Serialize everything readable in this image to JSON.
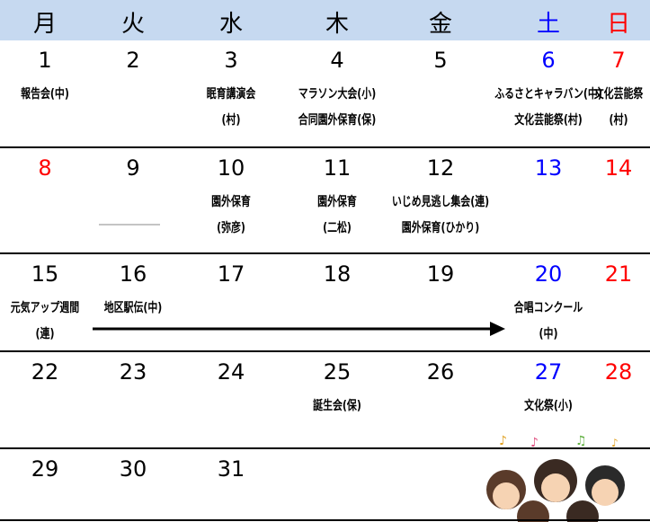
{
  "weekdays": [
    {
      "label": "月",
      "color": "#000"
    },
    {
      "label": "火",
      "color": "#000"
    },
    {
      "label": "水",
      "color": "#000"
    },
    {
      "label": "木",
      "color": "#000"
    },
    {
      "label": "金",
      "color": "#000"
    },
    {
      "label": "土",
      "color": "#0000ff"
    },
    {
      "label": "日",
      "color": "#ff0000"
    }
  ],
  "weeks": [
    [
      {
        "date": "1",
        "events": [
          "報告会(中)"
        ]
      },
      {
        "date": "2",
        "events": []
      },
      {
        "date": "3",
        "events": [
          "眠育講演会",
          "(村)"
        ]
      },
      {
        "date": "4",
        "events": [
          "マラソン大会(小)",
          "合同園外保育(保)"
        ]
      },
      {
        "date": "5",
        "events": []
      },
      {
        "date": "6",
        "color": "#0000ff",
        "events": [
          "ふるさとキャラバン(中)",
          "文化芸能祭(村)"
        ]
      },
      {
        "date": "7",
        "color": "#ff0000",
        "events": [
          "文化芸能祭",
          "(村)"
        ]
      }
    ],
    [
      {
        "date": "8",
        "color": "#ff0000",
        "events": []
      },
      {
        "date": "9",
        "events": []
      },
      {
        "date": "10",
        "events": [
          "園外保育",
          "(弥彦)"
        ]
      },
      {
        "date": "11",
        "events": [
          "園外保育",
          "(二松)"
        ]
      },
      {
        "date": "12",
        "events": [
          "いじめ見逃し集会(連)",
          "園外保育(ひかり)"
        ]
      },
      {
        "date": "13",
        "color": "#0000ff",
        "events": []
      },
      {
        "date": "14",
        "color": "#ff0000",
        "events": []
      }
    ],
    [
      {
        "date": "15",
        "events": [
          "元気アップ週間",
          "(連)"
        ]
      },
      {
        "date": "16",
        "events": [
          "地区駅伝(中)"
        ]
      },
      {
        "date": "17",
        "events": []
      },
      {
        "date": "18",
        "events": []
      },
      {
        "date": "19",
        "events": []
      },
      {
        "date": "20",
        "color": "#0000ff",
        "events": [
          "合唱コンクール",
          "(中)"
        ]
      },
      {
        "date": "21",
        "color": "#ff0000",
        "events": []
      }
    ],
    [
      {
        "date": "22",
        "events": []
      },
      {
        "date": "23",
        "events": []
      },
      {
        "date": "24",
        "events": []
      },
      {
        "date": "25",
        "events": [
          "誕生会(保)"
        ]
      },
      {
        "date": "26",
        "events": []
      },
      {
        "date": "27",
        "color": "#0000ff",
        "events": [
          "文化祭(小)"
        ]
      },
      {
        "date": "28",
        "color": "#ff0000",
        "events": []
      }
    ],
    [
      {
        "date": "29",
        "events": []
      },
      {
        "date": "30",
        "events": []
      },
      {
        "date": "31",
        "events": []
      }
    ]
  ]
}
